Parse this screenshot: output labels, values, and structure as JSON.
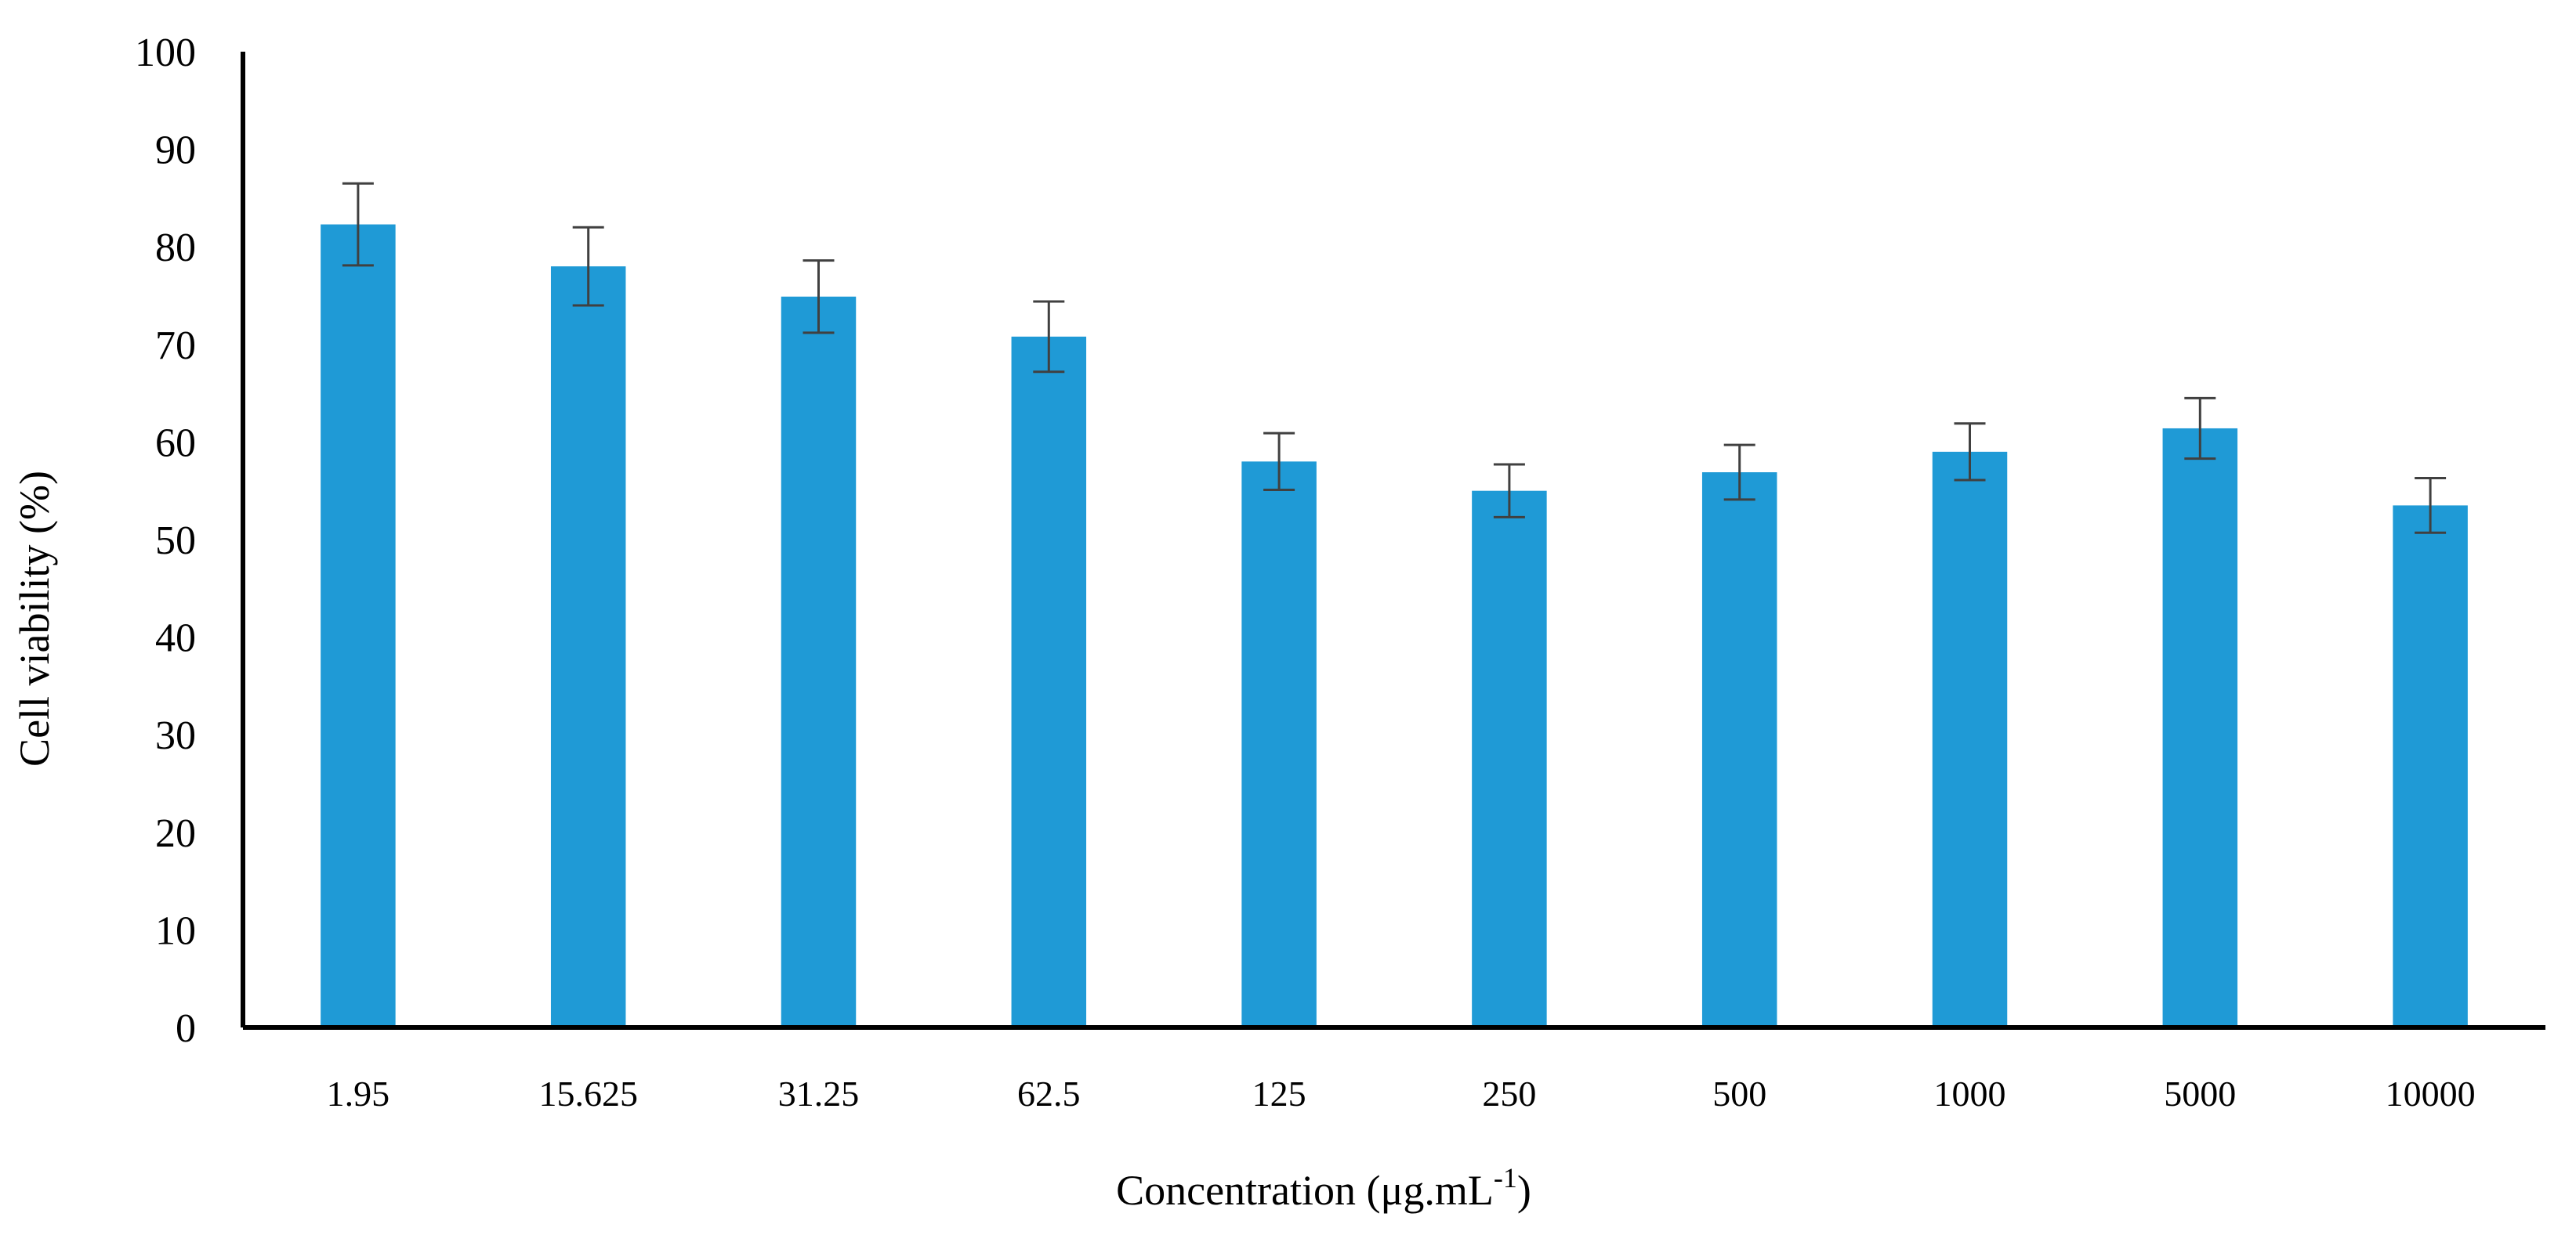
{
  "chart_data": {
    "type": "bar",
    "title": "",
    "xlabel": "Concentration (μg.mL",
    "xlabel_superscript": "-1",
    "xlabel_close": ")",
    "ylabel": "Cell viability (%)",
    "categories": [
      "1.95",
      "15.625",
      "31.25",
      "62.5",
      "125",
      "250",
      "500",
      "1000",
      "5000",
      "10000"
    ],
    "series": [
      {
        "values": [
          82.3,
          78.0,
          74.9,
          70.8,
          58.0,
          55.0,
          56.9,
          59.0,
          61.4,
          53.5
        ],
        "errors": [
          4.2,
          4.0,
          3.7,
          3.6,
          2.9,
          2.7,
          2.8,
          2.9,
          3.1,
          2.8
        ]
      }
    ],
    "ylim": [
      0,
      100
    ],
    "yticks": [
      0,
      10,
      20,
      30,
      40,
      50,
      60,
      70,
      80,
      90,
      100
    ],
    "grid": false,
    "legend": "none",
    "colors": {
      "bar": "#1f9ad6",
      "axis": "#000000",
      "error_bar": "#404040"
    }
  }
}
